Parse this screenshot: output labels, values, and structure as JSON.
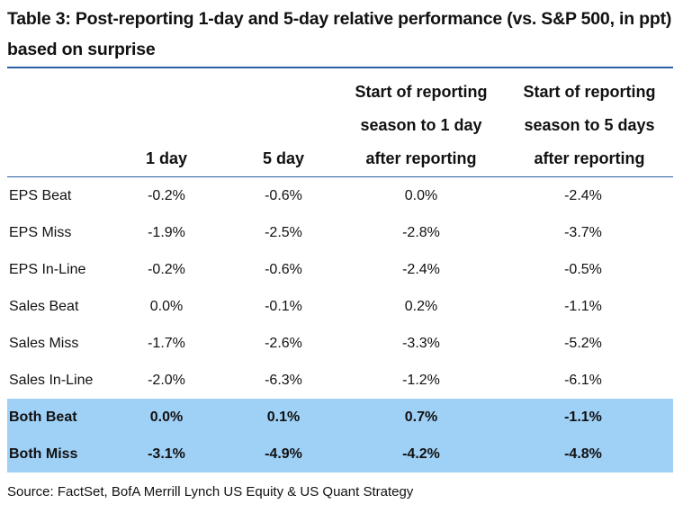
{
  "title": "Table 3: Post-reporting 1-day and 5-day relative performance (vs. S&P 500, in ppt) based on surprise",
  "columns": {
    "c1": "1 day",
    "c2": "5 day",
    "c3": [
      "Start of reporting",
      "season to 1 day",
      "after reporting"
    ],
    "c4": [
      "Start of reporting",
      "season to 5 days",
      "after reporting"
    ]
  },
  "rows": [
    {
      "label": "EPS Beat",
      "v": [
        "-0.2%",
        "-0.6%",
        "0.0%",
        "-2.4%"
      ]
    },
    {
      "label": "EPS Miss",
      "v": [
        "-1.9%",
        "-2.5%",
        "-2.8%",
        "-3.7%"
      ]
    },
    {
      "label": "EPS In-Line",
      "v": [
        "-0.2%",
        "-0.6%",
        "-2.4%",
        "-0.5%"
      ]
    },
    {
      "label": "Sales Beat",
      "v": [
        "0.0%",
        "-0.1%",
        "0.2%",
        "-1.1%"
      ]
    },
    {
      "label": "Sales Miss",
      "v": [
        "-1.7%",
        "-2.6%",
        "-3.3%",
        "-5.2%"
      ]
    },
    {
      "label": "Sales In-Line",
      "v": [
        "-2.0%",
        "-6.3%",
        "-1.2%",
        "-6.1%"
      ]
    },
    {
      "label": "Both Beat",
      "v": [
        "0.0%",
        "0.1%",
        "0.7%",
        "-1.1%"
      ]
    },
    {
      "label": "Both Miss",
      "v": [
        "-3.1%",
        "-4.9%",
        "-4.2%",
        "-4.8%"
      ]
    }
  ],
  "highlight_color": "#9fd0f5",
  "rule_color": "#2b5fa6",
  "source": "Source: FactSet, BofA Merrill Lynch US Equity & US Quant Strategy"
}
